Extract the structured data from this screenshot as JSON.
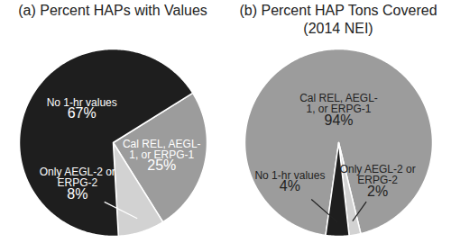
{
  "chart_data": [
    {
      "type": "pie",
      "title": "(a) Percent HAPs with Values",
      "categories": [
        "Cal REL, AEGL-1, or ERPG-1",
        "Only AEGL-2 or ERPG-2",
        "No 1-hr values"
      ],
      "values": [
        25,
        8,
        67
      ],
      "value_labels": [
        "25%",
        "8%",
        "67%"
      ],
      "colors": [
        "#9c9c9c",
        "#d2d2d2",
        "#1e1e1e"
      ],
      "data_labels": true
    },
    {
      "type": "pie",
      "title": "(b) Percent HAP Tons Covered",
      "subtitle": "(2014 NEI)",
      "categories": [
        "Cal REL, AEGL-1, or ERPG-1",
        "Only AEGL-2 or ERPG-2",
        "No 1-hr values"
      ],
      "values": [
        94,
        2,
        4
      ],
      "value_labels": [
        "94%",
        "2%",
        "4%"
      ],
      "colors": [
        "#9c9c9c",
        "#d2d2d2",
        "#1e1e1e"
      ],
      "data_labels": true
    }
  ]
}
